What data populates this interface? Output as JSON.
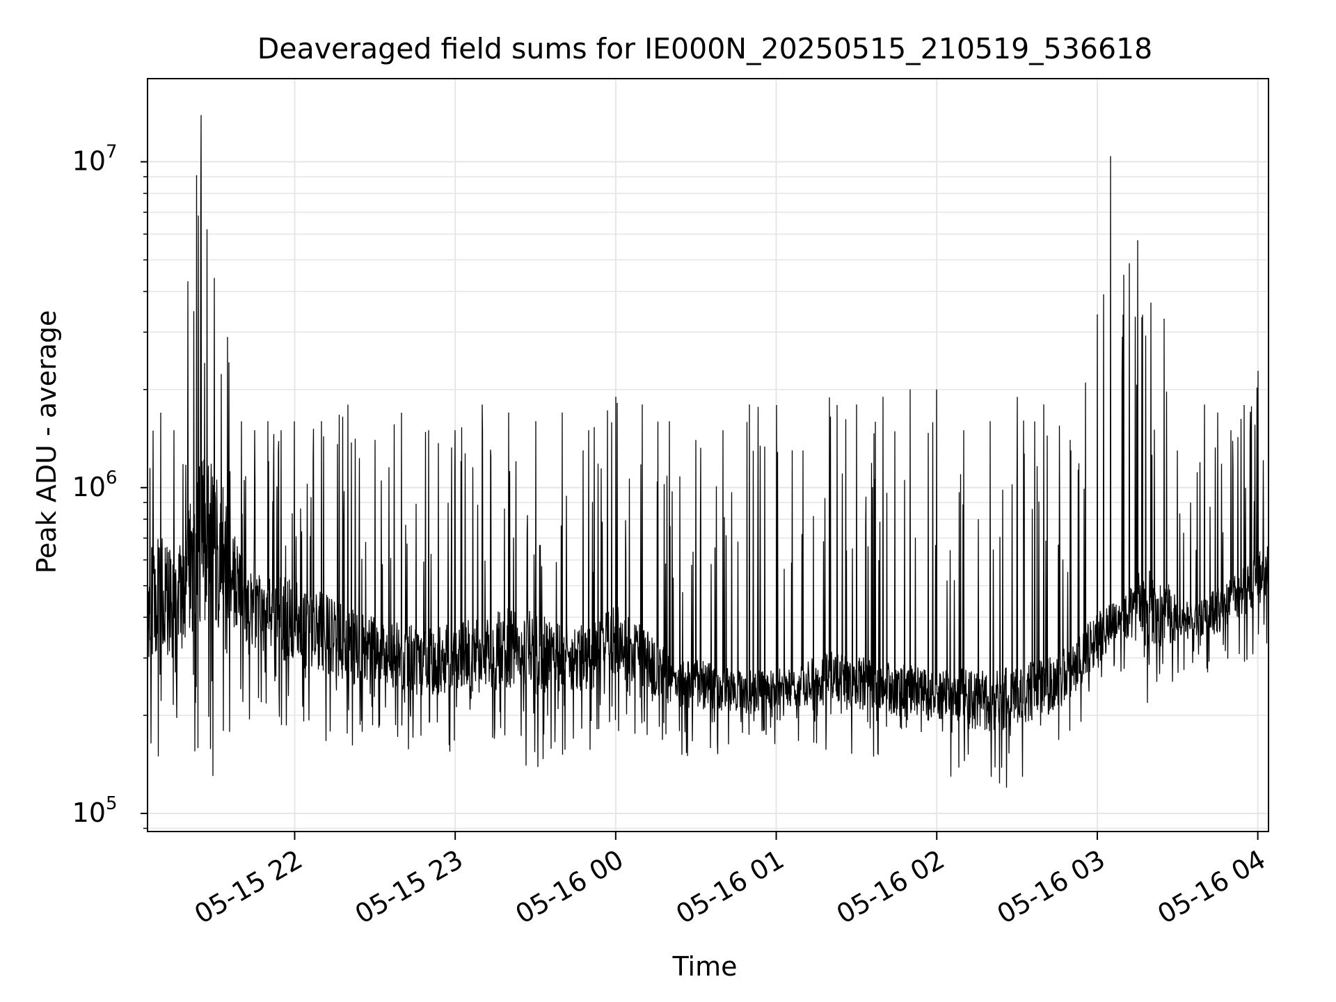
{
  "chart_data": {
    "type": "line",
    "title": "Deaveraged field sums for IE000N_20250515_210519_536618",
    "xlabel": "Time",
    "ylabel": "Peak ADU - average",
    "yscale": "log",
    "ylim": [
      88000,
      18000000
    ],
    "xlim": [
      "2025-05-15 21:05",
      "2025-05-16 04:04"
    ],
    "grid": true,
    "legend": "none",
    "line_color": "#000000",
    "x_ticks": [
      {
        "value": "2025-05-15 22:00",
        "label": "05-15 22"
      },
      {
        "value": "2025-05-15 23:00",
        "label": "05-15 23"
      },
      {
        "value": "2025-05-16 00:00",
        "label": "05-16 00"
      },
      {
        "value": "2025-05-16 01:00",
        "label": "05-16 01"
      },
      {
        "value": "2025-05-16 02:00",
        "label": "05-16 02"
      },
      {
        "value": "2025-05-16 03:00",
        "label": "05-16 03"
      },
      {
        "value": "2025-05-16 04:00",
        "label": "05-16 04"
      }
    ],
    "y_ticks": [
      {
        "value": 100000,
        "base": "10",
        "exp": "5"
      },
      {
        "value": 1000000,
        "base": "10",
        "exp": "6"
      },
      {
        "value": 10000000,
        "base": "10",
        "exp": "7"
      }
    ],
    "series": [
      {
        "x": [
          "2025-05-15 21:05",
          "2025-05-15 21:10",
          "2025-05-15 21:15",
          "2025-05-15 21:20",
          "2025-05-15 21:25",
          "2025-05-15 21:30",
          "2025-05-15 21:35",
          "2025-05-15 21:40",
          "2025-05-15 21:45",
          "2025-05-15 21:50",
          "2025-05-15 21:55",
          "2025-05-15 22:00",
          "2025-05-15 22:10",
          "2025-05-15 22:20",
          "2025-05-15 22:30",
          "2025-05-15 22:40",
          "2025-05-15 22:50",
          "2025-05-15 23:00",
          "2025-05-15 23:10",
          "2025-05-15 23:20",
          "2025-05-15 23:30",
          "2025-05-15 23:40",
          "2025-05-15 23:50",
          "2025-05-16 00:00",
          "2025-05-16 00:10",
          "2025-05-16 00:20",
          "2025-05-16 00:30",
          "2025-05-16 00:40",
          "2025-05-16 00:50",
          "2025-05-16 01:00",
          "2025-05-16 01:10",
          "2025-05-16 01:20",
          "2025-05-16 01:30",
          "2025-05-16 01:40",
          "2025-05-16 01:50",
          "2025-05-16 02:00",
          "2025-05-16 02:10",
          "2025-05-16 02:20",
          "2025-05-16 02:30",
          "2025-05-16 02:40",
          "2025-05-16 02:50",
          "2025-05-16 03:00",
          "2025-05-16 03:05",
          "2025-05-16 03:10",
          "2025-05-16 03:15",
          "2025-05-16 03:20",
          "2025-05-16 03:25",
          "2025-05-16 03:30",
          "2025-05-16 03:35",
          "2025-05-16 03:40",
          "2025-05-16 03:45",
          "2025-05-16 03:50",
          "2025-05-16 03:55",
          "2025-05-16 04:00",
          "2025-05-16 04:04"
        ],
        "median": [
          450000,
          480000,
          420000,
          550000,
          700000,
          650000,
          600000,
          450000,
          420000,
          400000,
          400000,
          380000,
          360000,
          330000,
          310000,
          300000,
          290000,
          300000,
          310000,
          320000,
          310000,
          300000,
          300000,
          340000,
          300000,
          260000,
          250000,
          240000,
          235000,
          240000,
          250000,
          260000,
          250000,
          245000,
          235000,
          230000,
          225000,
          220000,
          230000,
          240000,
          270000,
          340000,
          380000,
          400000,
          420000,
          430000,
          420000,
          400000,
          390000,
          400000,
          420000,
          450000,
          480000,
          520000,
          560000
        ],
        "high": [
          1600000,
          1700000,
          1500000,
          4300000,
          14000000,
          4400000,
          2900000,
          1600000,
          1500000,
          1600000,
          1500000,
          1600000,
          1600000,
          1800000,
          1400000,
          1700000,
          1500000,
          1500000,
          1800000,
          1700000,
          1600000,
          1700000,
          1500000,
          1900000,
          1800000,
          1600000,
          1400000,
          1500000,
          1800000,
          1800000,
          1300000,
          1900000,
          1800000,
          1900000,
          2000000,
          2000000,
          1500000,
          1600000,
          1900000,
          1800000,
          1400000,
          3400000,
          10500000,
          4500000,
          5800000,
          3700000,
          3300000,
          1300000,
          900000,
          1800000,
          1700000,
          1500000,
          1800000,
          2300000,
          1700000
        ],
        "low": [
          110000,
          150000,
          140000,
          140000,
          130000,
          120000,
          160000,
          200000,
          190000,
          180000,
          170000,
          160000,
          160000,
          150000,
          150000,
          150000,
          140000,
          150000,
          140000,
          140000,
          130000,
          150000,
          150000,
          160000,
          160000,
          150000,
          150000,
          150000,
          150000,
          160000,
          160000,
          150000,
          140000,
          150000,
          130000,
          140000,
          120000,
          120000,
          120000,
          130000,
          150000,
          180000,
          250000,
          270000,
          190000,
          200000,
          200000,
          250000,
          270000,
          270000,
          260000,
          280000,
          290000,
          300000,
          320000
        ]
      }
    ]
  }
}
